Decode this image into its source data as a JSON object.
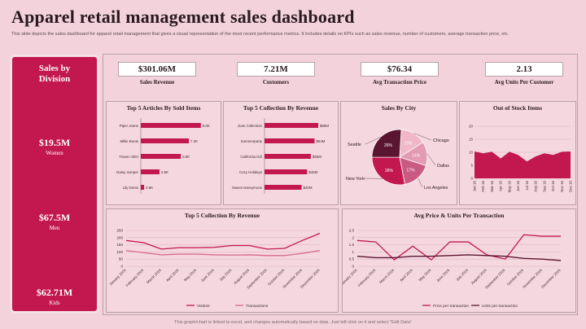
{
  "header": {
    "title": "Apparel retail management sales dashboard",
    "description": "This slide depicts the sales dashboard for apparel retail management that gives a visual representation of the most recent performance metrics. It includes details on KPIs such as sales revenue, number of customers, average transaction price, etc."
  },
  "sidebar": {
    "title": "Sales by Division",
    "divisions": [
      {
        "value": "$19.5M",
        "label": "Women"
      },
      {
        "value": "$67.5M",
        "label": "Men"
      },
      {
        "value": "$62.71M",
        "label": "Kids"
      }
    ]
  },
  "kpis": [
    {
      "value": "$301.06M",
      "label": "Sales Revenue"
    },
    {
      "value": "7.21M",
      "label": "Customers"
    },
    {
      "value": "$76.34",
      "label": "Avg Transaction Price"
    },
    {
      "value": "2.13",
      "label": "Avg Units Per Customer"
    }
  ],
  "footer": "This graph/chart is linked to excel, and changes automatically based on data. Just left click on it and select \"Edit Data\"",
  "colors": {
    "primary": "#c2174f",
    "background": "#f3d2dc",
    "line_light": "#d86a8e",
    "dark": "#5a1630"
  },
  "chart_data": [
    {
      "type": "bar",
      "title": "Top 5 Articles By Sold Items",
      "orientation": "horizontal",
      "categories": [
        "Piper Jeans",
        "Millie Boots",
        "Traven Shirt",
        "Daisy Jumper",
        "Lily Dress"
      ],
      "values": [
        9.0,
        7.2,
        6.0,
        2.8,
        0.5
      ],
      "labels": [
        "9.0K",
        "7.2K",
        "6.0K",
        "2.8K",
        "0.5K"
      ],
      "xlim": [
        0,
        10
      ]
    },
    {
      "type": "bar",
      "title": "Top 5 Collection By Revenue",
      "orientation": "horizontal",
      "categories": [
        "June Collection",
        "Summerparty",
        "California Girl",
        "Cozy Holidays",
        "Sweet Honeymoon"
      ],
      "values": [
        58,
        54,
        50,
        46,
        40
      ],
      "labels": [
        "$58M",
        "$54M",
        "$50M",
        "$46M",
        "$40M"
      ],
      "xlim": [
        0,
        65
      ]
    },
    {
      "type": "pie",
      "title": "Sales By City",
      "slices": [
        {
          "label": "Chicago",
          "value": 15,
          "display": "15%",
          "color": "#f0b7c8"
        },
        {
          "label": "Dallas",
          "value": 14,
          "display": "14%",
          "color": "#e39ab3"
        },
        {
          "label": "Los Angeles",
          "value": 17,
          "display": "17%",
          "color": "#c95a82"
        },
        {
          "label": "New York",
          "value": 28,
          "display": "28%",
          "color": "#c2174f"
        },
        {
          "label": "Seattle",
          "value": 26,
          "display": "26%",
          "color": "#5a1630"
        }
      ]
    },
    {
      "type": "area",
      "title": "Out of Stock Items",
      "categories": [
        "Jan 16",
        "Feb 16",
        "Mar 16",
        "Apr 16",
        "May 16",
        "Jun 16",
        "Jul 16",
        "Aug 16",
        "Sep 16",
        "Oct 16",
        "Nov 16",
        "Dec 16"
      ],
      "values": [
        10.3,
        9.6,
        10.2,
        7.6,
        10.2,
        9.0,
        6.5,
        8.4,
        9.6,
        9.0,
        10.2,
        10.3
      ],
      "ylim": [
        0,
        20
      ],
      "yticks": [
        0,
        5,
        10,
        15,
        20
      ]
    },
    {
      "type": "line",
      "title": "Top 5 Collection By Revenue",
      "categories": [
        "January 2016",
        "February 2016",
        "March 2016",
        "April 2016",
        "May 2016",
        "June 2016",
        "July 2016",
        "August 2016",
        "September 2016",
        "October 2016",
        "November 2016",
        "December 2016"
      ],
      "series": [
        {
          "name": "Visitors",
          "values": [
            180,
            165,
            120,
            130,
            130,
            132,
            145,
            145,
            120,
            125,
            180,
            230
          ],
          "color": "#c2174f"
        },
        {
          "name": "Transactions",
          "values": [
            110,
            95,
            80,
            85,
            85,
            80,
            78,
            80,
            75,
            75,
            90,
            110
          ],
          "color": "#d86a8e"
        }
      ],
      "ylim": [
        0,
        250
      ],
      "yticks": [
        0,
        50,
        100,
        150,
        200,
        250
      ]
    },
    {
      "type": "line",
      "title": "Avg Price & Units Per Transaction",
      "categories": [
        "January 2016",
        "February 2016",
        "March 2016",
        "April 2016",
        "May 2016",
        "June 2016",
        "July 2016",
        "August 2016",
        "September 2016",
        "October 2016",
        "November 2016",
        "December 2016"
      ],
      "series": [
        {
          "name": "Price per transaction",
          "values": [
            1.8,
            1.7,
            0.45,
            1.4,
            0.45,
            1.7,
            1.7,
            0.8,
            0.5,
            2.2,
            2.1,
            2.1
          ],
          "color": "#c2174f"
        },
        {
          "name": "Units per transaction",
          "values": [
            0.7,
            0.6,
            0.6,
            0.7,
            0.7,
            0.75,
            0.8,
            0.75,
            0.7,
            0.55,
            0.5,
            0.4
          ],
          "color": "#5a1630"
        }
      ],
      "ylim": [
        0,
        2.5
      ],
      "yticks": [
        0,
        0.5,
        1,
        1.5,
        2,
        2.5
      ]
    }
  ]
}
